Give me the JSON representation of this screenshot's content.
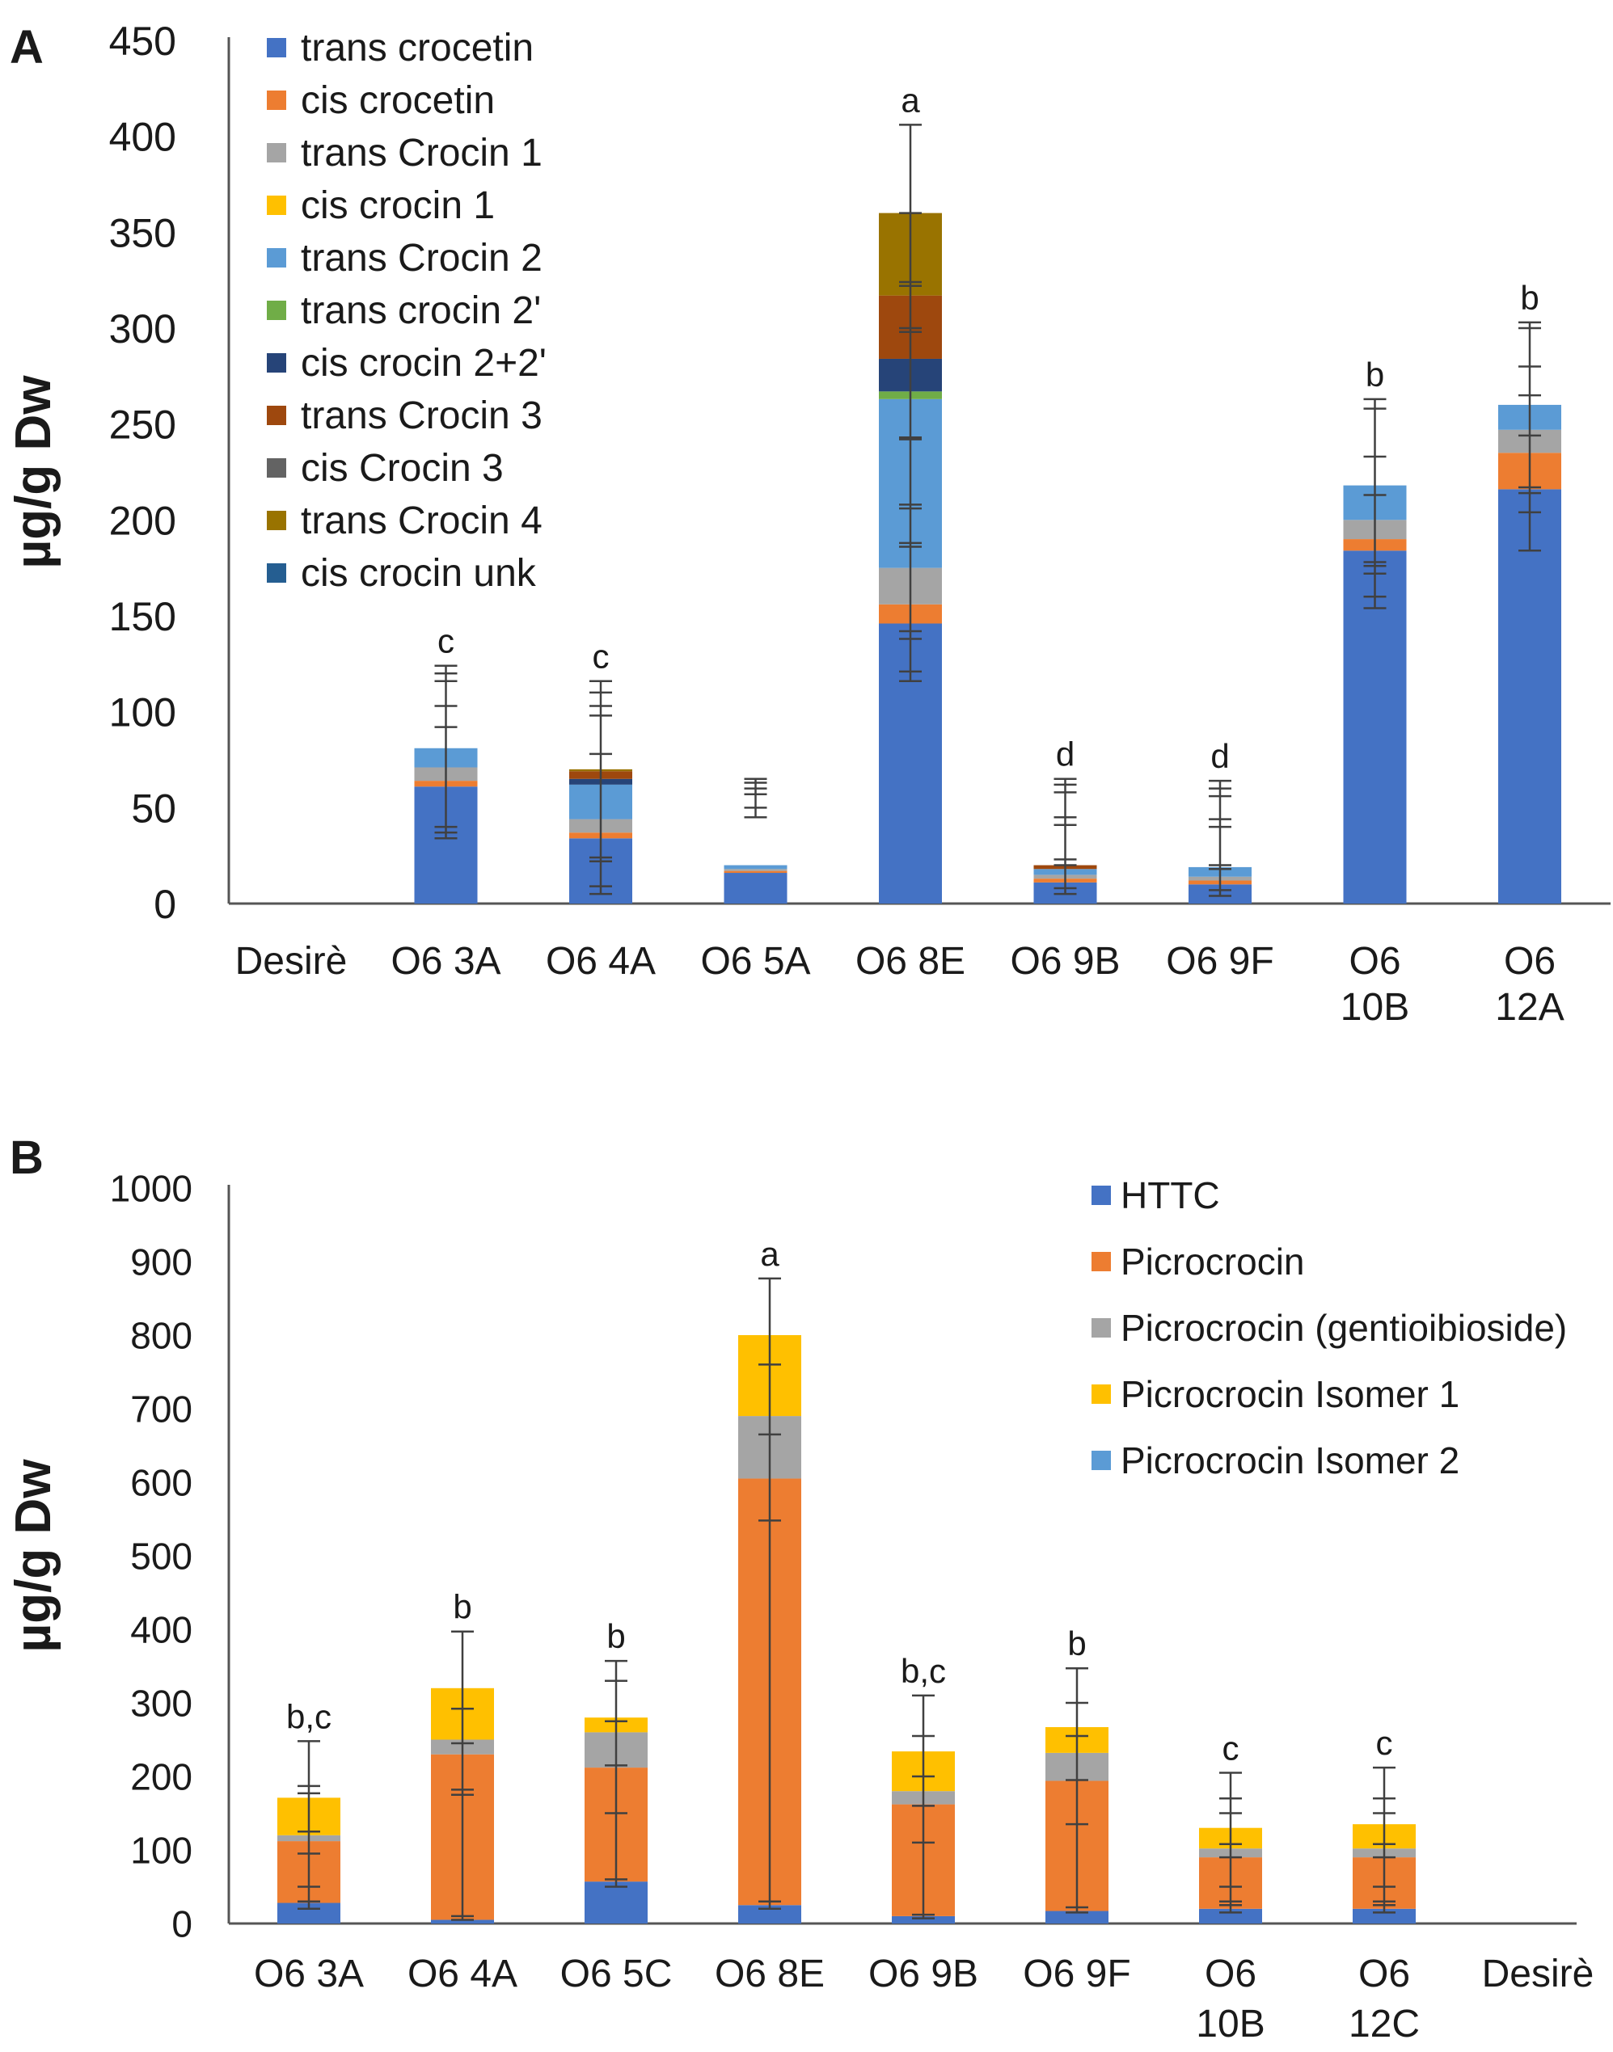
{
  "chart_data": [
    {
      "panel_label": "A",
      "type": "bar",
      "stacked": true,
      "title": "",
      "xlabel": "",
      "ylabel": "µg/g Dw",
      "ylim": [
        0,
        450
      ],
      "yticks": [
        0,
        50,
        100,
        150,
        200,
        250,
        300,
        350,
        400,
        450
      ],
      "grid": false,
      "legend_position": "top-left",
      "categories": [
        [
          "Desirè"
        ],
        [
          "O6 3A"
        ],
        [
          "O6 4A"
        ],
        [
          "O6 5A"
        ],
        [
          "O6 8E"
        ],
        [
          "O6 9B"
        ],
        [
          "O6 9F"
        ],
        [
          "O6",
          "10B"
        ],
        [
          "O6",
          "12A"
        ]
      ],
      "series": [
        {
          "name": "trans crocetin",
          "color": "#4472C4",
          "values": [
            0,
            61,
            34,
            16,
            146,
            11,
            10,
            184,
            216
          ]
        },
        {
          "name": "cis crocetin",
          "color": "#ED7D31",
          "values": [
            0,
            3,
            3,
            1,
            10,
            2,
            2,
            6,
            19
          ]
        },
        {
          "name": "trans Crocin 1",
          "color": "#A5A5A5",
          "values": [
            0,
            7,
            7,
            1,
            19,
            2,
            2,
            10,
            12
          ]
        },
        {
          "name": "cis crocin 1",
          "color": "#FFC000",
          "values": [
            0,
            0,
            0,
            0,
            0,
            0,
            0,
            0,
            0
          ]
        },
        {
          "name": "trans Crocin 2",
          "color": "#5B9BD5",
          "values": [
            0,
            10,
            18,
            2,
            88,
            3,
            5,
            18,
            13
          ]
        },
        {
          "name": "trans crocin 2'",
          "color": "#70AD47",
          "values": [
            0,
            0,
            0,
            0,
            4,
            0,
            0,
            0,
            0
          ]
        },
        {
          "name": "cis crocin 2+2'",
          "color": "#264478",
          "values": [
            0,
            0,
            3,
            0,
            17,
            0,
            0,
            0,
            0
          ]
        },
        {
          "name": "trans Crocin 3",
          "color": "#9E480E",
          "values": [
            0,
            0,
            4,
            0,
            33,
            2,
            0,
            0,
            0
          ]
        },
        {
          "name": "cis Crocin 3",
          "color": "#636363",
          "values": [
            0,
            0,
            0,
            0,
            0,
            0,
            0,
            0,
            0
          ]
        },
        {
          "name": "trans Crocin 4",
          "color": "#997300",
          "values": [
            0,
            0,
            1,
            0,
            43,
            0,
            0,
            0,
            0
          ]
        },
        {
          "name": "cis crocin unk",
          "color": "#255E91",
          "values": [
            0,
            0,
            0,
            0,
            0,
            0,
            0,
            0,
            0
          ]
        }
      ],
      "error_caps": [
        [],
        [
          34,
          37,
          40,
          92,
          103,
          116,
          120,
          124
        ],
        [
          5,
          9,
          22,
          24,
          78,
          98,
          103,
          110,
          116
        ],
        [
          45,
          50,
          57,
          60,
          63,
          65
        ],
        [
          116,
          121,
          138,
          142,
          186,
          188,
          206,
          208,
          242,
          243,
          298,
          300,
          322,
          324,
          360,
          406
        ],
        [
          5,
          8,
          20,
          23,
          41,
          45,
          58,
          62,
          65
        ],
        [
          4,
          7,
          18,
          20,
          40,
          44,
          56,
          60,
          64
        ],
        [
          154,
          160,
          172,
          176,
          178,
          213,
          233,
          258,
          263
        ],
        [
          184,
          204,
          214,
          217,
          244,
          265,
          280,
          300,
          303
        ]
      ],
      "annotations": [
        "",
        "c",
        "c",
        "",
        "a",
        "d",
        "d",
        "b",
        "b"
      ]
    },
    {
      "panel_label": "B",
      "type": "bar",
      "stacked": true,
      "title": "",
      "xlabel": "",
      "ylabel": "µg/g Dw",
      "ylim": [
        0,
        1000
      ],
      "yticks": [
        0,
        100,
        200,
        300,
        400,
        500,
        600,
        700,
        800,
        900,
        1000
      ],
      "grid": false,
      "legend_position": "top-right",
      "categories": [
        [
          "O6 3A"
        ],
        [
          "O6 4A"
        ],
        [
          "O6 5C"
        ],
        [
          "O6 8E"
        ],
        [
          "O6 9B"
        ],
        [
          "O6 9F"
        ],
        [
          "O6",
          "10B"
        ],
        [
          "O6",
          "12C"
        ],
        [
          "Desirè"
        ]
      ],
      "series": [
        {
          "name": "HTTC",
          "color": "#4472C4",
          "values": [
            28,
            5,
            57,
            25,
            10,
            17,
            20,
            20,
            0
          ]
        },
        {
          "name": "Picrocrocin",
          "color": "#ED7D31",
          "values": [
            84,
            225,
            155,
            580,
            152,
            177,
            70,
            70,
            0
          ]
        },
        {
          "name": "Picrocrocin (gentioibioside)",
          "color": "#A5A5A5",
          "values": [
            8,
            20,
            48,
            85,
            18,
            38,
            12,
            12,
            0
          ]
        },
        {
          "name": "Picrocrocin Isomer 1",
          "color": "#FFC000",
          "values": [
            51,
            70,
            20,
            110,
            54,
            35,
            28,
            33,
            0
          ]
        },
        {
          "name": "Picrocrocin Isomer 2",
          "color": "#5B9BD5",
          "values": [
            0,
            0,
            0,
            0,
            0,
            0,
            0,
            0,
            0
          ]
        }
      ],
      "error_caps": [
        [
          20,
          30,
          50,
          95,
          125,
          177,
          187,
          248
        ],
        [
          5,
          10,
          175,
          182,
          245,
          292,
          397
        ],
        [
          50,
          60,
          150,
          215,
          275,
          330,
          357
        ],
        [
          20,
          30,
          548,
          665,
          760,
          877
        ],
        [
          7,
          12,
          110,
          160,
          200,
          255,
          310
        ],
        [
          15,
          22,
          135,
          195,
          255,
          300,
          347
        ],
        [
          15,
          25,
          30,
          50,
          90,
          108,
          150,
          170,
          205
        ],
        [
          15,
          25,
          30,
          50,
          90,
          108,
          150,
          170,
          212
        ]
      ],
      "annotations": [
        "b,c",
        "b",
        "b",
        "a",
        "b,c",
        "b",
        "c",
        "c",
        ""
      ]
    }
  ]
}
